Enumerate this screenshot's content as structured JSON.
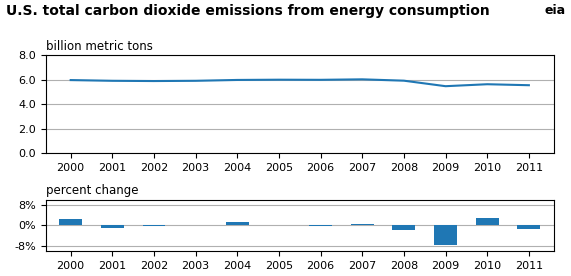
{
  "chart_data": [
    {
      "type": "line",
      "title": "U.S. total carbon dioxide emissions from energy consumption",
      "ylabel": "billion metric tons",
      "annotations": [
        "eia"
      ],
      "x": [
        2000,
        2001,
        2002,
        2003,
        2004,
        2005,
        2006,
        2007,
        2008,
        2009,
        2010,
        2011
      ],
      "values": [
        5.97,
        5.91,
        5.89,
        5.91,
        5.98,
        6.0,
        5.99,
        6.03,
        5.92,
        5.47,
        5.63,
        5.55
      ],
      "xlim": [
        1999.4,
        2011.6
      ],
      "xticks": [
        2000,
        2001,
        2002,
        2003,
        2004,
        2005,
        2006,
        2007,
        2008,
        2009,
        2010,
        2011
      ],
      "ylim": [
        0.0,
        8.0
      ],
      "yticks": [
        {
          "value": 0.0,
          "label": "0.0"
        },
        {
          "value": 2.0,
          "label": "2.0"
        },
        {
          "value": 4.0,
          "label": "4.0"
        },
        {
          "value": 6.0,
          "label": "6.0"
        },
        {
          "value": 8.0,
          "label": "8.0"
        }
      ],
      "grid": "y"
    },
    {
      "type": "bar",
      "ylabel": "percent change",
      "x": [
        2000,
        2001,
        2002,
        2003,
        2004,
        2005,
        2006,
        2007,
        2008,
        2009,
        2010,
        2011
      ],
      "values": [
        2.5,
        -1.0,
        -0.3,
        0.3,
        1.2,
        0.3,
        -0.2,
        0.7,
        -1.8,
        -7.7,
        2.9,
        -1.4
      ],
      "xlim": [
        1999.4,
        2011.6
      ],
      "xticks": [
        2000,
        2001,
        2002,
        2003,
        2004,
        2005,
        2006,
        2007,
        2008,
        2009,
        2010,
        2011
      ],
      "ylim": [
        -10.0,
        10.0
      ],
      "yticks": [
        {
          "value": -8,
          "label": "-8%"
        },
        {
          "value": 0,
          "label": "0%"
        },
        {
          "value": 8,
          "label": "8%"
        }
      ],
      "grid": "y"
    }
  ]
}
